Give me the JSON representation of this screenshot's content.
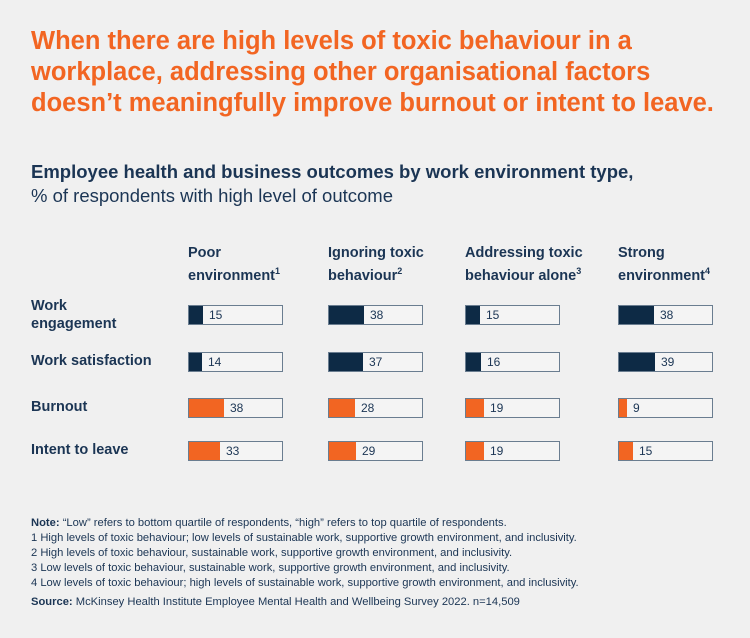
{
  "chart_data": {
    "type": "bar",
    "title": "When there are high levels of toxic behaviour in a workplace, addressing other organisational factors doesn’t meaningfully improve burnout or intent to leave.",
    "subtitle_bold": "Employee health and business outcomes by work environment type,",
    "subtitle": "% of respondents with high level of outcome",
    "columns": [
      {
        "label": "Poor environment",
        "sup": "1"
      },
      {
        "label": "Ignoring toxic behaviour",
        "sup": "2"
      },
      {
        "label": "Addressing toxic behaviour alone",
        "sup": "3"
      },
      {
        "label": "Strong environment",
        "sup": "4"
      }
    ],
    "column_lines": [
      [
        "Poor",
        "environment"
      ],
      [
        "Ignoring toxic",
        "behaviour"
      ],
      [
        "Addressing toxic",
        "behaviour alone"
      ],
      [
        "Strong",
        "environment"
      ]
    ],
    "xlim": [
      0,
      100
    ],
    "rows": [
      {
        "label": "Work engagement",
        "lines": [
          "Work",
          "engagement"
        ],
        "color": "#0d2a45",
        "values": [
          15,
          38,
          15,
          38
        ]
      },
      {
        "label": "Work satisfaction",
        "lines": [
          "Work satisfaction"
        ],
        "color": "#0d2a45",
        "values": [
          14,
          37,
          16,
          39
        ]
      },
      {
        "label": "Burnout",
        "lines": [
          "Burnout"
        ],
        "color": "#f26522",
        "values": [
          38,
          28,
          19,
          9
        ]
      },
      {
        "label": "Intent to leave",
        "lines": [
          "Intent to leave"
        ],
        "color": "#f26522",
        "values": [
          33,
          29,
          19,
          15
        ]
      }
    ]
  },
  "notes": {
    "note_label": "Note:",
    "note_text": " “Low” refers to bottom quartile of respondents, “high” refers to top quartile of respondents.",
    "footnotes": [
      "1 High levels of toxic behaviour; low levels of sustainable work, supportive growth environment, and inclusivity.",
      "2 High levels of toxic behaviour, sustainable work, supportive growth environment, and inclusivity.",
      "3 Low levels of toxic behaviour, sustainable work, supportive growth environment, and inclusivity.",
      "4 Low levels of toxic behaviour; high levels of sustainable work, supportive growth environment, and inclusivity."
    ],
    "source_label": "Source:",
    "source_text": " McKinsey Health Institute Employee Mental Health and Wellbeing Survey 2022. n=14,509"
  }
}
